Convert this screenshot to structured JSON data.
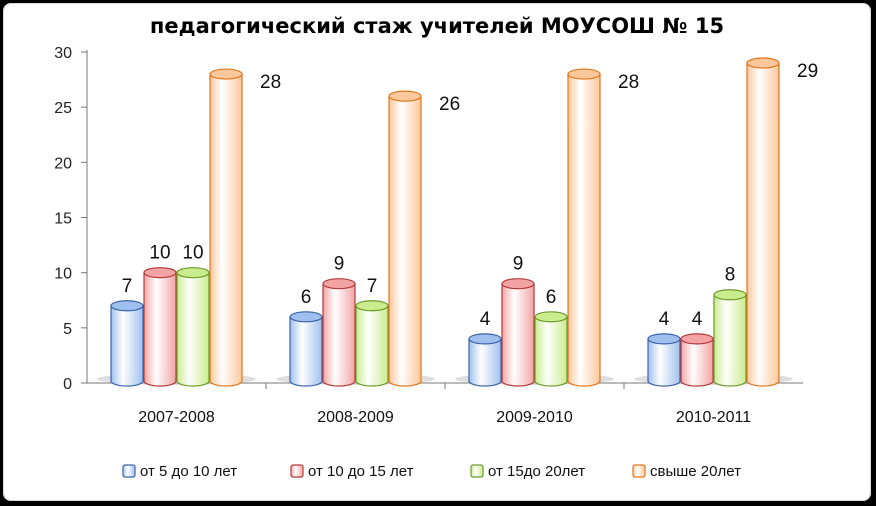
{
  "chart_data": {
    "type": "bar",
    "title": "педагогический стаж учителей МОУСОШ № 15",
    "categories": [
      "2007-2008",
      "2008-2009",
      "2009-2010",
      "2010-2011"
    ],
    "series": [
      {
        "name": "от 5 до 10 лет",
        "values": [
          7,
          6,
          4,
          4
        ],
        "color": "#9fc0ef",
        "edge": "#3a64a8"
      },
      {
        "name": "от 10 до 15 лет",
        "values": [
          10,
          9,
          9,
          4
        ],
        "color": "#f3a3a3",
        "edge": "#b23a3a"
      },
      {
        "name": "от 15до 20лет",
        "values": [
          10,
          7,
          6,
          8
        ],
        "color": "#c9ec8d",
        "edge": "#6d9a2a"
      },
      {
        "name": "свыше 20лет",
        "values": [
          28,
          26,
          28,
          29
        ],
        "color": "#fcc79a",
        "edge": "#e0761d"
      }
    ],
    "y_ticks": [
      "0",
      "5",
      "10",
      "15",
      "20",
      "25",
      "30"
    ],
    "ylim": [
      0,
      30
    ],
    "xlabel": "",
    "ylabel": "",
    "legend_position": "bottom",
    "style": "3d-cylinder"
  }
}
